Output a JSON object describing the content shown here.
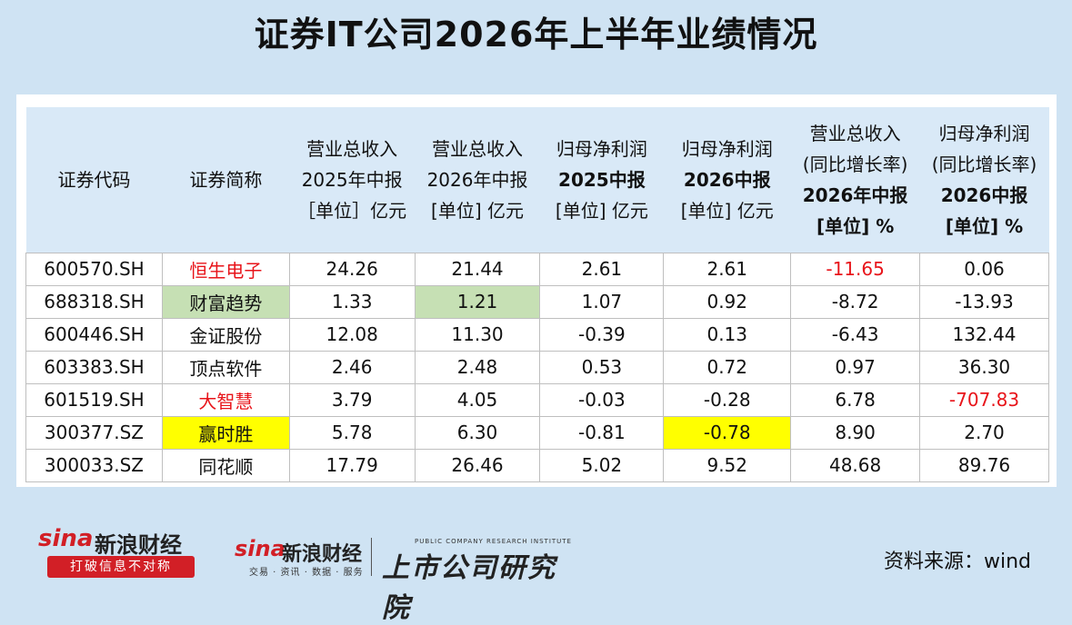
{
  "title": "证券IT公司2026年上半年业绩情况",
  "table": {
    "headers": [
      [
        "证券代码"
      ],
      [
        "证券简称"
      ],
      [
        "营业总收入",
        "2025年中报",
        "［单位］亿元"
      ],
      [
        "营业总收入",
        "2026年中报",
        "[单位] 亿元"
      ],
      [
        "归母净利润",
        "2025中报",
        "[单位] 亿元"
      ],
      [
        "归母净利润",
        "2026中报",
        "[单位] 亿元"
      ],
      [
        "营业总收入",
        "(同比增长率)",
        "2026年中报",
        "[单位] %"
      ],
      [
        "归母净利润",
        "(同比增长率)",
        "2026中报",
        "[单位] %"
      ]
    ],
    "rows": [
      [
        "600570.SH",
        "恒生电子",
        "24.26",
        "21.44",
        "2.61",
        "2.61",
        "-11.65",
        "0.06"
      ],
      [
        "688318.SH",
        "财富趋势",
        "1.33",
        "1.21",
        "1.07",
        "0.92",
        "-8.72",
        "-13.93"
      ],
      [
        "600446.SH",
        "金证股份",
        "12.08",
        "11.30",
        "-0.39",
        "0.13",
        "-6.43",
        "132.44"
      ],
      [
        "603383.SH",
        "顶点软件",
        "2.46",
        "2.48",
        "0.53",
        "0.72",
        "0.97",
        "36.30"
      ],
      [
        "601519.SH",
        "大智慧",
        "3.79",
        "4.05",
        "-0.03",
        "-0.28",
        "6.78",
        "-707.83"
      ],
      [
        "300377.SZ",
        "赢时胜",
        "5.78",
        "6.30",
        "-0.81",
        "-0.78",
        "8.90",
        "2.70"
      ],
      [
        "300033.SZ",
        "同花顺",
        "17.79",
        "26.46",
        "5.02",
        "9.52",
        "48.68",
        "89.76"
      ]
    ]
  },
  "colors": {
    "background": "#cfe3f3",
    "header_bg": "#d9e9f7",
    "highlight_red": "#e8141a",
    "highlight_green": "#c6e0b4",
    "highlight_yellow": "#ffff00"
  },
  "footer": {
    "logo1_sina": "sina",
    "logo1_name": "新浪财经",
    "logo1_slogan": "打破信息不对称",
    "logo2_sina": "sina",
    "logo2_name": "新浪财经",
    "logo2_sub": "交易 · 资讯 · 数据 · 服务",
    "logo2_en": "PUBLIC COMPANY RESEARCH INSTITUTE",
    "logo2_cn": "上市公司研究院",
    "source": "资料来源：wind"
  }
}
